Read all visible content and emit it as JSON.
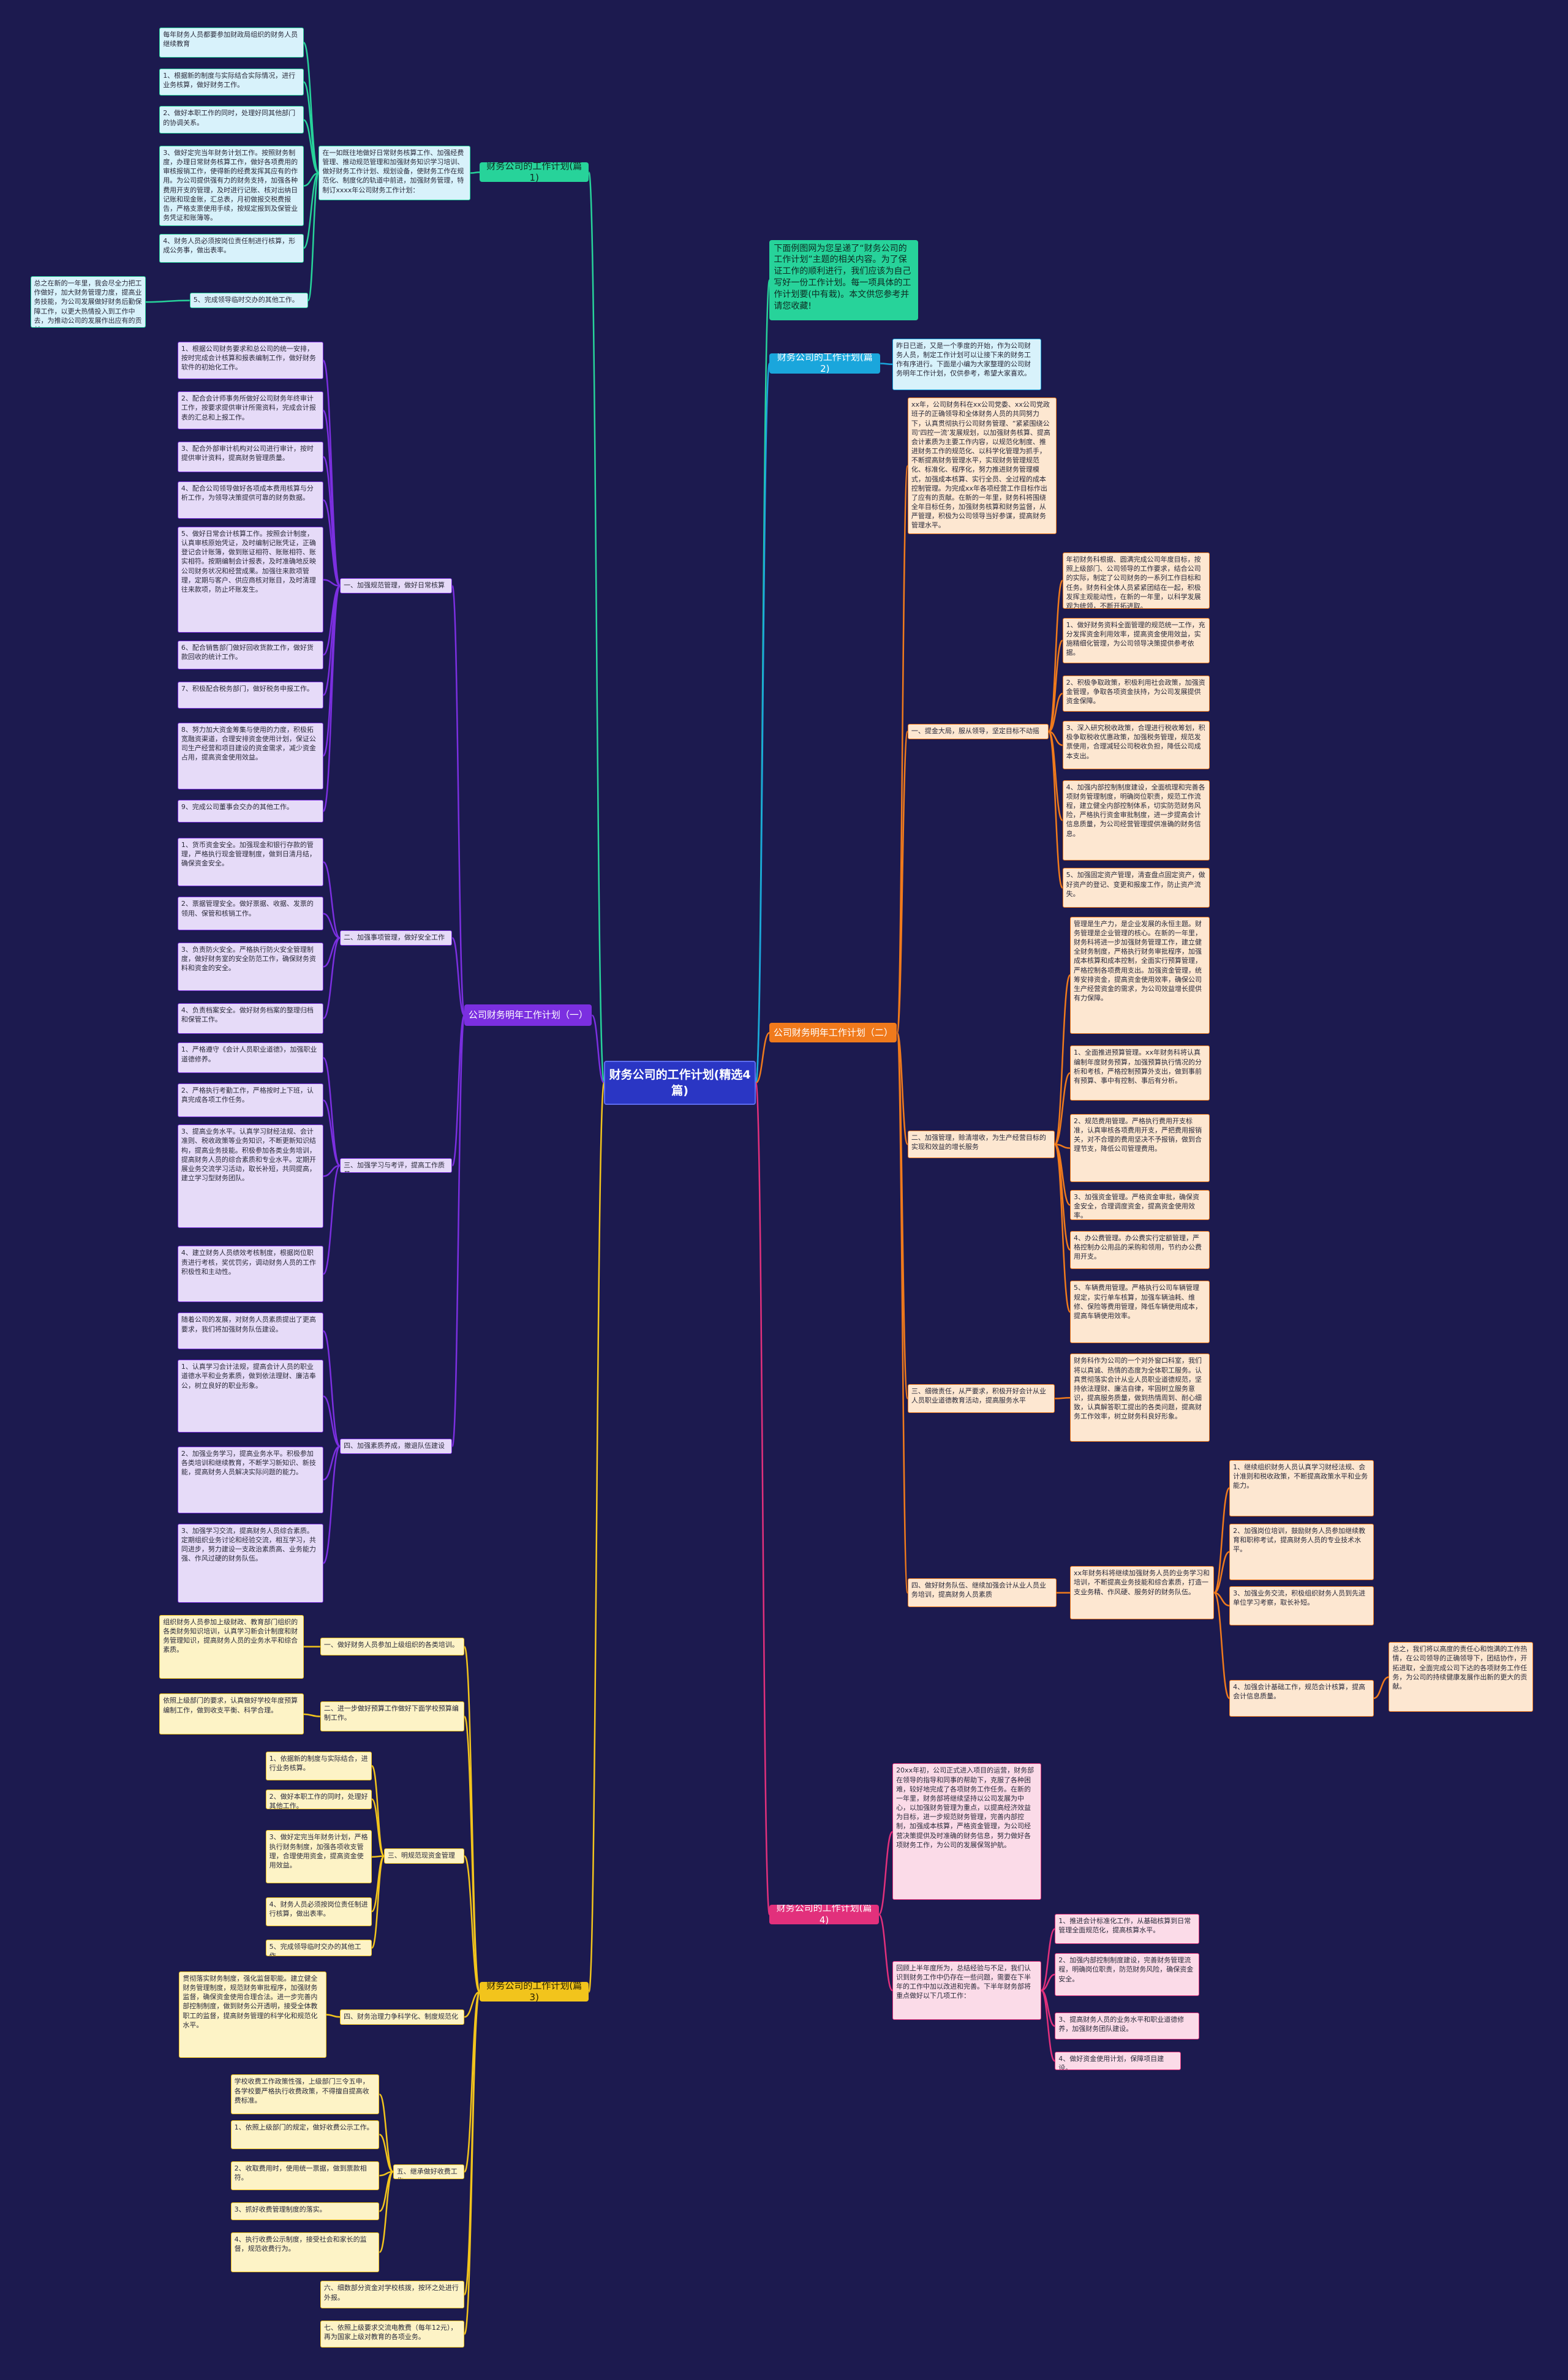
{
  "title": "财务公司的工作计划(精选4篇)",
  "branches": [
    {
      "label": "财务公司的工作计划(篇1)",
      "children": [
        {
          "label": "在一如既往地做好日常财务核算工作、加强经费管理、推动规范管理和加强财务知识学习培训、做好财务工作计划、规划设备，使财务工作在规范化、制度化的轨道中前进，加强财务管理，特制订xxxx年公司财务工作计划：",
          "children": [
            {
              "label": "每年财务人员都要参加财政局组织的财务人员继续教育"
            },
            {
              "label": "1、根据新的制度与实际结合实际情况，进行业务核算，做好财务工作。"
            },
            {
              "label": "2、做好本职工作的同时，处理好同其他部门的协调关系。"
            },
            {
              "label": "3、做好定完当年财务计划工作。按照财务制度，办理日常财务核算工作，做好各项费用的审核报销工作，使得新的经费发挥其应有的作用。为公司提供强有力的财务支持，加强各种费用开支的管理，及时进行记账、核对出纳日记账和现金账，汇总表，月初做报交税费报告，严格支票使用手续，按规定报到及保管业务凭证和账簿等。"
            },
            {
              "label": "4、财务人员必须按岗位责任制进行核算，形成公务事，做出表率。"
            },
            {
              "label": "5、完成领导临时交办的其他工作。",
              "children": [
                {
                  "label": "总之在新的一年里，我会尽全力把工作做好，加大财务管理力度，提高业务技能，为公司发展做好财务后勤保障工作，以更大热情投入到工作中去，为推动公司的发展作出应有的贡献。"
                }
              ]
            }
          ]
        }
      ]
    },
    {
      "label": "下面例图网为您呈递了“财务公司的工作计划”主题的相关内容。为了保证工作的顺利进行，我们应该为自己写好一份工作计划。每一项具体的工作计划要(中有栽)。本文供您参考并请您收藏!"
    },
    {
      "label": "财务公司的工作计划(篇2)",
      "children": [
        {
          "label": "昨日已逝，又是一个季度的开始，作为公司财务人员，制定工作计划可以让接下来的财务工作有序进行。下面是小编为大家整理的公司财务明年工作计划，仅供参考，希望大家喜欢。"
        }
      ]
    },
    {
      "label": "公司财务明年工作计划（二）",
      "children": [
        {
          "label": "xx年，公司财务科在xx公司党委、xx公司党政班子的正确领导和全体财务人员的共同努力下，认真贯彻执行公司财务管理、“紧紧围绕公司‘四控一流’发展规划，以加强财务核算、提高会计素质为主要工作内容，以规范化制度、推进财务工作的规范化、以科学化管理为抓手，不断提高财务管理水平，实现财务管理规范化、标准化、程序化，努力推进财务管理模式，加强成本核算、实行全员、全过程的成本控制管理。为完成xx年各项经营工作目标作出了应有的贡献。在新的一年里，财务科将围绕全年目标任务，加强财务核算和财务监督，从严管理，积极为公司领导当好参谋，提高财务管理水平。"
        },
        {
          "label": "一、提金大局，服从领导，坚定目标不动摇",
          "children": [
            {
              "label": "年初财务科根据、圆满完成公司年度目标，按照上级部门、公司领导的工作要求，结合公司的实际，制定了公司财务的一系列工作目标和任务。财务科全体人员紧紧团结在一起，积极发挥主观能动性，在新的一年里，以科学发展观为统领，不断开拓进取。"
            },
            {
              "label": "1、做好财务资料全面管理的规范统一工作，充分发挥资金利用效率，提高资金使用效益，实施精细化管理，为公司领导决策提供参考依据。"
            },
            {
              "label": "2、积极争取政策，积极利用社会政策，加强资金管理，争取各项资金扶持，为公司发展提供资金保障。"
            },
            {
              "label": "3、深入研究税收政策，合理进行税收筹划，积极争取税收优惠政策，加强税务管理，规范发票使用，合理减轻公司税收负担，降低公司成本支出。"
            },
            {
              "label": "4、加强内部控制制度建设，全面梳理和完善各项财务管理制度，明确岗位职责，规范工作流程，建立健全内部控制体系，切实防范财务风险，严格执行资金审批制度，进一步提高会计信息质量，为公司经营管理提供准确的财务信息。"
            },
            {
              "label": "5、加强固定资产管理，清查盘点固定资产，做好资产的登记、变更和报废工作，防止资产流失。"
            }
          ]
        },
        {
          "label": "二、加强管理，赊清增收，为生产经营目标的实现和效益的增长服务",
          "children": [
            {
              "label": "管理是生产力，是企业发展的永恒主题。财务管理是企业管理的核心。在新的一年里，财务科将进一步加强财务管理工作，建立健全财务制度，严格执行财务审批程序，加强成本核算和成本控制，全面实行预算管理，严格控制各项费用支出。加强资金管理，统筹安排资金，提高资金使用效率，确保公司生产经营资金的需求，为公司效益增长提供有力保障。"
            },
            {
              "label": "1、全面推进预算管理。xx年财务科将认真编制年度财务预算，加强预算执行情况的分析和考核，严格控制预算外支出，做到事前有预算、事中有控制、事后有分析。"
            },
            {
              "label": "2、规范费用管理。严格执行费用开支标准，认真审核各项费用开支，严把费用报销关，对不合理的费用坚决不予报销，做到合理节支，降低公司管理费用。"
            },
            {
              "label": "3、加强资金管理。严格资金审批，确保资金安全，合理调度资金，提高资金使用效率。"
            },
            {
              "label": "4、办公费管理。办公费实行定额管理，严格控制办公用品的采购和领用，节约办公费用开支。"
            },
            {
              "label": "5、车辆费用管理。严格执行公司车辆管理规定，实行单车核算，加强车辆油耗、维修、保险等费用管理，降低车辆使用成本，提高车辆使用效率。"
            }
          ]
        },
        {
          "label": "三、细微责任，从严要求，积极开好会计从业人员职业道德教育活动，提高服务水平",
          "children": [
            {
              "label": "财务科作为公司的一个对外窗口科室，我们将以真诚、热情的态度为全体职工服务。认真贯彻落实会计从业人员职业道德规范，坚持依法理财、廉洁自律，牢固树立服务意识，提高服务质量，做到热情周到、耐心细致，认真解答职工提出的各类问题，提高财务工作效率，树立财务科良好形象。"
            }
          ]
        },
        {
          "label": "四、做好财务队伍、继续加强会计从业人员业务培训，提高财务人员素质",
          "children": [
            {
              "label": "xx年财务科将继续加强财务人员的业务学习和培训，不断提高业务技能和综合素质，打造一支业务精、作风硬、服务好的财务队伍。",
              "children": [
                {
                  "label": "1、继续组织财务人员认真学习财经法规、会计准则和税收政策，不断提高政策水平和业务能力。"
                },
                {
                  "label": "2、加强岗位培训，鼓励财务人员参加继续教育和职称考试，提高财务人员的专业技术水平。"
                },
                {
                  "label": "3、加强业务交流，积极组织财务人员到先进单位学习考察，取长补短。"
                },
                {
                  "label": "4、加强会计基础工作，规范会计核算，提高会计信息质量。",
                  "children": [
                    {
                      "label": "总之，我们将以高度的责任心和饱满的工作热情，在公司领导的正确领导下，团结协作，开拓进取，全面完成公司下达的各项财务工作任务，为公司的持续健康发展作出新的更大的贡献。"
                    }
                  ]
                }
              ]
            }
          ]
        }
      ]
    },
    {
      "label": "财务公司的工作计划(篇4)",
      "children": [
        {
          "label": "20xx年初，公司正式进入项目的运营，财务部在领导的指导和同事的帮助下，克服了各种困难，较好地完成了各项财务工作任务。在新的一年里，财务部将继续坚持以公司发展为中心，以加强财务管理为重点，以提高经济效益为目标，进一步规范财务管理，完善内部控制，加强成本核算，严格资金管理，为公司经营决策提供及时准确的财务信息，努力做好各项财务工作，为公司的发展保驾护航。"
        },
        {
          "label": "回顾上半年度所为，总结经验与不足，我们认识到财务工作中仍存在一些问题，需要在下半年的工作中加以改进和完善。下半年财务部将重点做好以下几项工作：",
          "children": [
            {
              "label": "1、推进会计标准化工作，从基础核算到日常管理全面规范化，提高核算水平。"
            },
            {
              "label": "2、加强内部控制制度建设，完善财务管理流程，明确岗位职责，防范财务风险，确保资金安全。"
            },
            {
              "label": "3、提高财务人员的业务水平和职业道德修养，加强财务团队建设。"
            },
            {
              "label": "4、做好资金使用计划，保障项目建设。"
            }
          ]
        }
      ]
    },
    {
      "label": "公司财务明年工作计划（一）",
      "children": [
        {
          "label": "一、加强规范管理，做好日常核算",
          "children": [
            {
              "label": "1、根据公司财务要求和总公司的统一安排，按时完成会计核算和报表编制工作，做好财务软件的初始化工作。"
            },
            {
              "label": "2、配合会计师事务所做好公司财务年终审计工作，按要求提供审计所需资料，完成会计报表的汇总和上报工作。"
            },
            {
              "label": "3、配合外部审计机构对公司进行审计，按时提供审计资料，提高财务管理质量。"
            },
            {
              "label": "4、配合公司领导做好各项成本费用核算与分析工作，为领导决策提供可靠的财务数据。"
            },
            {
              "label": "5、做好日常会计核算工作。按照会计制度，认真审核原始凭证，及时编制记账凭证，正确登记会计账簿，做到账证相符、账账相符、账实相符。按期编制会计报表，及时准确地反映公司财务状况和经营成果。加强往来款项管理，定期与客户、供应商核对账目，及时清理往来款项，防止坏账发生。"
            },
            {
              "label": "6、配合销售部门做好回收货款工作，做好货款回收的统计工作。"
            },
            {
              "label": "7、积极配合税务部门，做好税务申报工作。"
            },
            {
              "label": "8、努力加大资金筹集与使用的力度，积极拓宽融资渠道，合理安排资金使用计划，保证公司生产经营和项目建设的资金需求，减少资金占用，提高资金使用效益。"
            },
            {
              "label": "9、完成公司董事会交办的其他工作。"
            }
          ]
        },
        {
          "label": "二、加强事项管理，做好安全工作",
          "children": [
            {
              "label": "1、货币资金安全。加强现金和银行存款的管理，严格执行现金管理制度，做到日清月结，确保资金安全。"
            },
            {
              "label": "2、票据管理安全。做好票据、收据、发票的领用、保管和核销工作。"
            },
            {
              "label": "3、负责防火安全。严格执行防火安全管理制度，做好财务室的安全防范工作，确保财务资料和资金的安全。"
            },
            {
              "label": "4、负责档案安全。做好财务档案的整理归档和保管工作。"
            }
          ]
        },
        {
          "label": "三、加强学习与考评，提高工作质量",
          "children": [
            {
              "label": "1、严格遵守《会计人员职业道德》，加强职业道德修养。"
            },
            {
              "label": "2、严格执行考勤工作，严格按时上下班，认真完成各项工作任务。"
            },
            {
              "label": "3、提高业务水平。认真学习财经法规、会计准则、税收政策等业务知识，不断更新知识结构，提高业务技能。积极参加各类业务培训，提高财务人员的综合素质和专业水平。定期开展业务交流学习活动，取长补短，共同提高，建立学习型财务团队。"
            },
            {
              "label": "4、建立财务人员绩效考核制度，根据岗位职责进行考核，奖优罚劣，调动财务人员的工作积极性和主动性。"
            }
          ]
        },
        {
          "label": "四、加强素质养成，撤退队伍建设",
          "children": [
            {
              "label": "随着公司的发展，对财务人员素质提出了更高要求，我们将加强财务队伍建设。"
            },
            {
              "label": "1、认真学习会计法规，提高会计人员的职业道德水平和业务素质，做到依法理财、廉洁奉公，树立良好的职业形象。"
            },
            {
              "label": "2、加强业务学习，提高业务水平。积极参加各类培训和继续教育，不断学习新知识、新技能，提高财务人员解决实际问题的能力。"
            },
            {
              "label": "3、加强学习交流，提高财务人员综合素质。定期组织业务讨论和经验交流，相互学习，共同进步，努力建设一支政治素质高、业务能力强、作风过硬的财务队伍。"
            }
          ]
        }
      ]
    },
    {
      "label": "财务公司的工作计划(篇3)",
      "children": [
        {
          "label": "一、做好财务人员参加上级组织的各类培训。",
          "children": [
            {
              "label": "组织财务人员参加上级财政、教育部门组织的各类财务知识培训，认真学习新会计制度和财务管理知识，提高财务人员的业务水平和综合素质。"
            }
          ]
        },
        {
          "label": "二、进一步做好预算工作做好下面学校预算编制工作。",
          "children": [
            {
              "label": "依照上级部门的要求，认真做好学校年度预算编制工作，做到收支平衡、科学合理。"
            }
          ]
        },
        {
          "label": "三、明规范现资金管理",
          "children": [
            {
              "label": "1、依据新的制度与实际结合，进行业务核算。"
            },
            {
              "label": "2、做好本职工作的同时，处理好其他工作。"
            },
            {
              "label": "3、做好定完当年财务计划，严格执行财务制度，加强各项收支管理，合理使用资金，提高资金使用效益。"
            },
            {
              "label": "4、财务人员必须按岗位责任制进行核算，做出表率。"
            },
            {
              "label": "5、完成领导临时交办的其他工作。"
            }
          ]
        },
        {
          "label": "四、财务治理力争科学化、制度规范化",
          "children": [
            {
              "label": "贯彻落实财务制度，强化监督职能。建立健全财务管理制度，规范财务审批程序，加强财务监督，确保资金使用合理合法。进一步完善内部控制制度，做到财务公开透明，接受全体教职工的监督，提高财务管理的科学化和规范化水平。"
            }
          ]
        },
        {
          "label": "五、继承做好收费工作",
          "children": [
            {
              "label": "学校收费工作政策性强，上级部门三令五申，各学校要严格执行收费政策，不得擅自提高收费标准。"
            },
            {
              "label": "1、依照上级部门的规定，做好收费公示工作。"
            },
            {
              "label": "2、收取费用时，使用统一票据，做到票款相符。"
            },
            {
              "label": "3、抓好收费管理制度的落实。"
            },
            {
              "label": "4、执行收费公示制度，接受社会和家长的监督，规范收费行为。"
            }
          ]
        },
        {
          "label": "六、细数部分资金对学校核拨，按环之处进行外报。"
        },
        {
          "label": "七、依照上级要求交流电教费（每年12元），再为国家上级对教育的各项业务。"
        }
      ]
    }
  ]
}
